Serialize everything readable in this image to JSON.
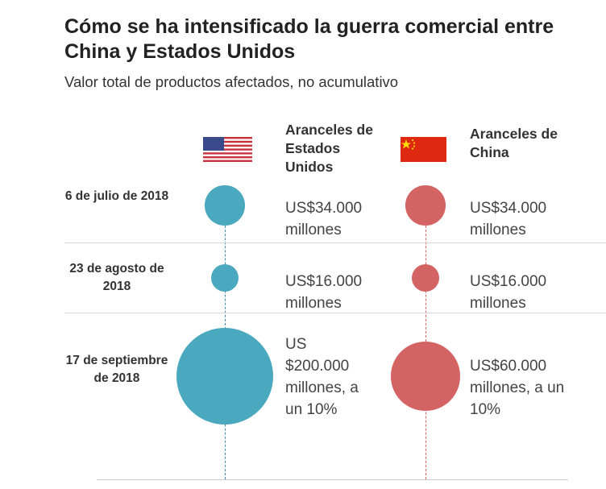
{
  "title": "Cómo se ha intensificado la guerra comercial entre China y Estados Unidos",
  "subtitle": "Valor total de productos afectados, no acumulativo",
  "colors": {
    "us": "#4aa8bf",
    "china": "#d46363"
  },
  "chart_data": {
    "type": "bubble",
    "title": "Cómo se ha intensificado la guerra comercial entre China y Estados Unidos",
    "subtitle": "Valor total de productos afectados, no acumulativo",
    "unit": "millones de US$",
    "series": [
      {
        "name": "Aranceles de Estados Unidos",
        "icon": "us-flag-icon",
        "values": [
          34000,
          16000,
          200000
        ]
      },
      {
        "name": "Aranceles de China",
        "icon": "china-flag-icon",
        "values": [
          34000,
          16000,
          60000
        ]
      }
    ],
    "rows": [
      {
        "date": "6 de julio de 2018",
        "us_label": "US$34.000 millones",
        "china_label": "US$34.000 millones"
      },
      {
        "date": "23 de agosto de 2018",
        "us_label": "US$16.000 millones",
        "china_label": "US$16.000 millones"
      },
      {
        "date": "17 de septiembre de 2018",
        "us_label": "US $200.000 millones, a un 10%",
        "china_label": "US$60.000 millones, a un 10%"
      }
    ]
  }
}
